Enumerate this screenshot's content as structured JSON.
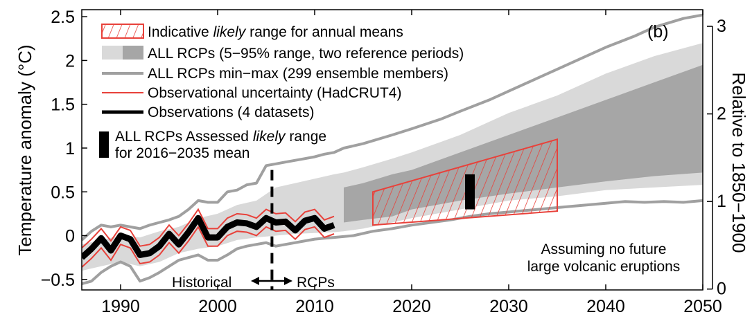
{
  "chart_data": {
    "type": "line",
    "panel_label": "(b)",
    "xlim": [
      1986,
      2050
    ],
    "ylim": [
      -0.62,
      2.58
    ],
    "ylim_right": [
      0.0,
      3.0
    ],
    "right_axis_offset": 0.61,
    "x_ticks": [
      1990,
      2000,
      2010,
      2020,
      2030,
      2040,
      2050
    ],
    "y_ticks": [
      {
        "value": -0.5,
        "label": "−0.5"
      },
      {
        "value": 0,
        "label": "0"
      },
      {
        "value": 0.5,
        "label": "0.5"
      },
      {
        "value": 1,
        "label": "1"
      },
      {
        "value": 1.5,
        "label": "1.5"
      },
      {
        "value": 2,
        "label": "2"
      },
      {
        "value": 2.5,
        "label": "2.5"
      }
    ],
    "y_right_ticks": [
      {
        "value": 0,
        "label": "0"
      },
      {
        "value": 1,
        "label": "1"
      },
      {
        "value": 2,
        "label": "2"
      },
      {
        "value": 3,
        "label": "3"
      }
    ],
    "ylabel": "Temperature anomaly (°C)",
    "ylabel_right": "Relative to 1850−1900",
    "legend": [
      {
        "key": "hatch",
        "text_before": "Indicative ",
        "text_italic": "likely",
        "text_after": " range for annual means"
      },
      {
        "key": "band",
        "text_before": "ALL RCPs (5−95% range, two reference periods)",
        "text_italic": "",
        "text_after": ""
      },
      {
        "key": "minmax",
        "text_before": "ALL RCPs min−max (299 ensemble members)",
        "text_italic": "",
        "text_after": ""
      },
      {
        "key": "obs_unc",
        "text_before": "Observational uncertainty (HadCRUT4)",
        "text_italic": "",
        "text_after": ""
      },
      {
        "key": "obs",
        "text_before": "Observations (4 datasets)",
        "text_italic": "",
        "text_after": ""
      }
    ],
    "assessed_legend": {
      "line1_before": "ALL RCPs Assessed ",
      "line1_italic": "likely",
      "line1_after": " range",
      "line2": "for 2016−2035 mean"
    },
    "annotations": {
      "historical": "Historical",
      "rcps": "RCPs",
      "note_line1": "Assuming no future",
      "note_line2": "large volcanic eruptions"
    },
    "divider_year": 2005.6,
    "colors": {
      "band_light": "#d9d9d9",
      "band_dark": "#a6a6a6",
      "minmax": "#a0a0a0",
      "obs": "#000000",
      "obs_uncertainty": "#e8413a",
      "hatch": "#e8413a"
    },
    "series": {
      "minmax_upper": {
        "x": [
          1986,
          1987,
          1988,
          1989,
          1990,
          1991,
          1992,
          1993,
          1994,
          1995,
          1996,
          1997,
          1998,
          1999,
          2000,
          2001,
          2002,
          2003,
          2004,
          2005,
          2006,
          2007,
          2008,
          2009,
          2010,
          2011,
          2012,
          2013,
          2015,
          2018,
          2020,
          2023,
          2025,
          2028,
          2030,
          2033,
          2035,
          2038,
          2040,
          2043,
          2045,
          2048,
          2050
        ],
        "y": [
          -0.05,
          0.05,
          0.12,
          0.1,
          0.12,
          0.1,
          0.08,
          0.12,
          0.15,
          0.18,
          0.22,
          0.3,
          0.4,
          0.38,
          0.38,
          0.5,
          0.52,
          0.58,
          0.6,
          0.8,
          0.82,
          0.84,
          0.86,
          0.88,
          0.9,
          0.93,
          0.95,
          1.0,
          1.05,
          1.15,
          1.22,
          1.33,
          1.42,
          1.55,
          1.65,
          1.8,
          1.9,
          2.05,
          2.15,
          2.28,
          2.38,
          2.48,
          2.52
        ]
      },
      "minmax_lower": {
        "x": [
          1986,
          1987,
          1988,
          1989,
          1990,
          1991,
          1992,
          1993,
          1994,
          1995,
          1996,
          1997,
          1998,
          1999,
          2000,
          2001,
          2002,
          2003,
          2004,
          2005,
          2006,
          2007,
          2008,
          2009,
          2010,
          2011,
          2012,
          2014,
          2016,
          2018,
          2020,
          2022,
          2024,
          2026,
          2028,
          2030,
          2033,
          2035,
          2038,
          2040,
          2042,
          2044,
          2046,
          2048,
          2050
        ],
        "y": [
          -0.55,
          -0.52,
          -0.42,
          -0.35,
          -0.3,
          -0.35,
          -0.52,
          -0.48,
          -0.42,
          -0.35,
          -0.28,
          -0.25,
          -0.22,
          -0.28,
          -0.28,
          -0.22,
          -0.15,
          -0.12,
          -0.1,
          -0.08,
          -0.12,
          -0.1,
          -0.08,
          -0.06,
          -0.04,
          -0.03,
          -0.02,
          0.0,
          0.05,
          0.08,
          0.12,
          0.15,
          0.18,
          0.22,
          0.25,
          0.27,
          0.3,
          0.32,
          0.35,
          0.37,
          0.39,
          0.38,
          0.39,
          0.38,
          0.4
        ]
      },
      "band_light_upper": {
        "x": [
          1986,
          1988,
          1990,
          1992,
          1994,
          1996,
          1998,
          2000,
          2002,
          2004,
          2006,
          2008,
          2010,
          2012,
          2013,
          2015,
          2018,
          2020,
          2025,
          2030,
          2035,
          2040,
          2045,
          2050
        ],
        "y": [
          -0.1,
          -0.05,
          0.0,
          -0.02,
          0.05,
          0.1,
          0.2,
          0.25,
          0.35,
          0.4,
          0.55,
          0.6,
          0.65,
          0.7,
          0.72,
          0.78,
          0.88,
          0.95,
          1.15,
          1.4,
          1.6,
          1.85,
          2.05,
          2.2
        ]
      },
      "band_light_lower": {
        "x": [
          1986,
          1988,
          1990,
          1992,
          1994,
          1996,
          1998,
          2000,
          2002,
          2004,
          2006,
          2008,
          2010,
          2012,
          2013,
          2015,
          2018,
          2020,
          2025,
          2030,
          2035,
          2040,
          2045,
          2050
        ],
        "y": [
          -0.4,
          -0.35,
          -0.3,
          -0.35,
          -0.3,
          -0.2,
          -0.15,
          -0.12,
          -0.05,
          -0.02,
          0.0,
          0.02,
          0.03,
          0.04,
          0.05,
          0.08,
          0.15,
          0.2,
          0.3,
          0.4,
          0.45,
          0.52,
          0.55,
          0.58
        ]
      },
      "band_dark_upper": {
        "x": [
          2013,
          2015,
          2018,
          2020,
          2025,
          2030,
          2035,
          2040,
          2045,
          2050
        ],
        "y": [
          0.55,
          0.6,
          0.7,
          0.75,
          0.95,
          1.15,
          1.35,
          1.55,
          1.75,
          1.95
        ]
      },
      "band_dark_lower": {
        "x": [
          2013,
          2015,
          2018,
          2020,
          2025,
          2030,
          2035,
          2040,
          2045,
          2050
        ],
        "y": [
          0.15,
          0.18,
          0.22,
          0.3,
          0.4,
          0.48,
          0.55,
          0.62,
          0.68,
          0.72
        ]
      },
      "obs_unc_upper": {
        "x": [
          1986,
          1987,
          1988,
          1989,
          1990,
          1991,
          1992,
          1993,
          1994,
          1995,
          1996,
          1997,
          1998,
          1999,
          2000,
          2001,
          2002,
          2003,
          2004,
          2005,
          2006,
          2007,
          2008,
          2009,
          2010,
          2011,
          2012
        ],
        "y": [
          -0.14,
          -0.04,
          0.08,
          -0.06,
          0.1,
          0.06,
          -0.12,
          -0.1,
          -0.02,
          0.12,
          0.0,
          0.14,
          0.3,
          0.08,
          0.08,
          0.2,
          0.25,
          0.24,
          0.2,
          0.3,
          0.25,
          0.26,
          0.16,
          0.27,
          0.3,
          0.18,
          0.22
        ]
      },
      "obs_unc_lower": {
        "x": [
          1986,
          1987,
          1988,
          1989,
          1990,
          1991,
          1992,
          1993,
          1994,
          1995,
          1996,
          1997,
          1998,
          1999,
          2000,
          2001,
          2002,
          2003,
          2004,
          2005,
          2006,
          2007,
          2008,
          2009,
          2010,
          2011,
          2012
        ],
        "y": [
          -0.36,
          -0.26,
          -0.14,
          -0.28,
          -0.1,
          -0.14,
          -0.32,
          -0.3,
          -0.22,
          -0.08,
          -0.2,
          -0.06,
          0.1,
          -0.12,
          -0.12,
          0.0,
          0.05,
          0.04,
          0.0,
          0.1,
          0.05,
          0.06,
          -0.04,
          0.07,
          0.1,
          -0.02,
          0.02
        ]
      },
      "observations": {
        "x": [
          1986,
          1987,
          1988,
          1989,
          1990,
          1991,
          1992,
          1993,
          1994,
          1995,
          1996,
          1997,
          1998,
          1999,
          2000,
          2001,
          2002,
          2003,
          2004,
          2005,
          2006,
          2007,
          2008,
          2009,
          2010,
          2011,
          2012
        ],
        "y": [
          -0.25,
          -0.15,
          -0.03,
          -0.17,
          0.0,
          -0.04,
          -0.22,
          -0.2,
          -0.12,
          0.02,
          -0.1,
          0.04,
          0.2,
          -0.02,
          -0.02,
          0.1,
          0.15,
          0.14,
          0.1,
          0.2,
          0.15,
          0.16,
          0.06,
          0.17,
          0.2,
          0.08,
          0.12
        ]
      }
    },
    "hatched_range": {
      "x_start": 2016,
      "x_end": 2035,
      "upper_start": 0.5,
      "upper_end": 1.1,
      "lower_start": 0.12,
      "lower_end": 0.28
    },
    "assessed_bar": {
      "x": 2026,
      "y_low": 0.3,
      "y_high": 0.7
    }
  }
}
